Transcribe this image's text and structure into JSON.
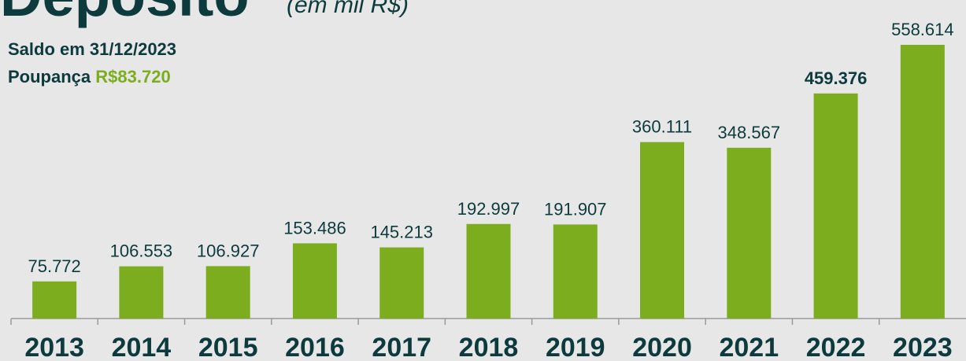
{
  "chart_data": {
    "type": "bar",
    "title": "Depósito",
    "unit_note": "(em mil R$)",
    "subtitle": "Saldo em 31/12/2023",
    "savings_label": "Poupança",
    "savings_value": "R$83.720",
    "categories": [
      "2013",
      "2014",
      "2015",
      "2016",
      "2017",
      "2018",
      "2019",
      "2020",
      "2021",
      "2022",
      "2023"
    ],
    "values": [
      75772,
      106553,
      106927,
      153486,
      145213,
      192997,
      191907,
      360111,
      348567,
      459376,
      558614
    ],
    "value_labels": [
      "75.772",
      "106.553",
      "106.927",
      "153.486",
      "145.213",
      "192.997",
      "191.907",
      "360.111",
      "348.567",
      "459.376",
      "558.614"
    ],
    "color": "#7cad1f",
    "bold_category": "2022"
  }
}
